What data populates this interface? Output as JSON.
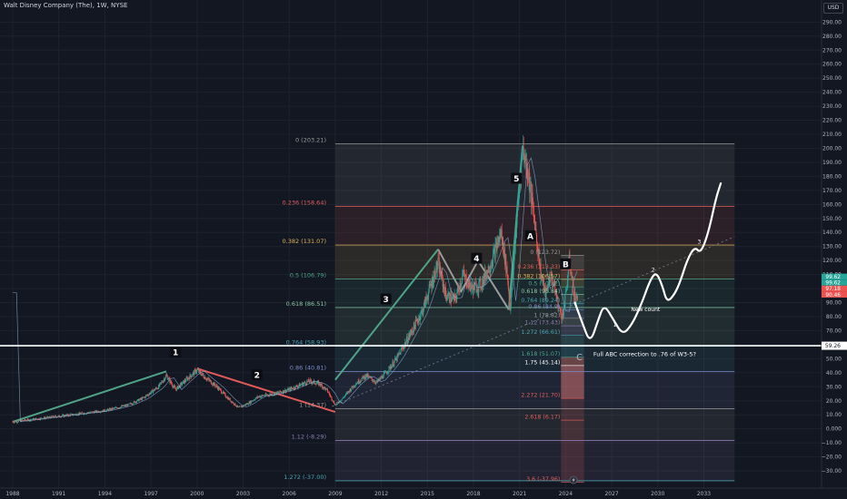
{
  "header": {
    "title": "Walt Disney Company (The), 1W, NYSE",
    "currency": "USD"
  },
  "colors": {
    "background": "#131722",
    "grid": "#1e222d",
    "candle_up": "#26a69a",
    "candle_down": "#ef5350",
    "fib_up_line": "#4fa387",
    "fib_down_line": "#d84f4f",
    "projection": "#ffffff"
  },
  "icons": [
    "lightning-icon"
  ],
  "chart_data": {
    "type": "candlestick",
    "title": "Walt Disney Company (The), 1W, NYSE",
    "x_axis": {
      "range": [
        1988,
        2035
      ],
      "ticks": [
        1988,
        1991,
        1994,
        1997,
        2000,
        2003,
        2006,
        2009,
        2012,
        2015,
        2018,
        2021,
        2024,
        2027,
        2030,
        2033
      ]
    },
    "y_axis": {
      "unit": "USD",
      "range": [
        -33,
        295
      ],
      "ticks": [
        -30,
        -20,
        -10,
        0,
        10,
        20,
        30,
        40,
        50,
        60,
        70,
        80,
        90,
        100,
        110,
        120,
        130,
        140,
        150,
        160,
        170,
        180,
        190,
        200,
        210,
        220,
        230,
        240,
        250,
        260,
        270,
        280,
        290
      ],
      "tick_labels": [
        "−30.00",
        "−20.00",
        "−10.00",
        "0.000",
        "10.00",
        "20.00",
        "30.00",
        "40.00",
        "50.00",
        "60.00",
        "70.00",
        "80.00",
        "90.00",
        "100.00",
        "110.00",
        "120.00",
        "130.00",
        "140.00",
        "150.00",
        "160.00",
        "170.00",
        "180.00",
        "190.00",
        "200.00",
        "210.00",
        "220.00",
        "230.00",
        "240.00",
        "250.00",
        "260.00",
        "270.00",
        "280.00",
        "290.00"
      ]
    },
    "price_path": [
      [
        1988.0,
        5
      ],
      [
        1989.5,
        7
      ],
      [
        1991.0,
        9
      ],
      [
        1992.5,
        11
      ],
      [
        1994.0,
        13
      ],
      [
        1995.5,
        17
      ],
      [
        1996.5,
        22
      ],
      [
        1997.5,
        30
      ],
      [
        1998.0,
        38
      ],
      [
        1998.6,
        28
      ],
      [
        1999.3,
        35
      ],
      [
        2000.0,
        42
      ],
      [
        2000.5,
        37
      ],
      [
        2001.3,
        30
      ],
      [
        2002.0,
        22
      ],
      [
        2002.7,
        15
      ],
      [
        2003.3,
        18
      ],
      [
        2004.0,
        23
      ],
      [
        2005.0,
        25
      ],
      [
        2006.0,
        28
      ],
      [
        2007.3,
        34
      ],
      [
        2008.0,
        32
      ],
      [
        2008.5,
        27
      ],
      [
        2009.0,
        17
      ],
      [
        2009.5,
        22
      ],
      [
        2010.3,
        32
      ],
      [
        2011.0,
        38
      ],
      [
        2011.7,
        33
      ],
      [
        2012.3,
        40
      ],
      [
        2013.0,
        50
      ],
      [
        2014.0,
        70
      ],
      [
        2014.7,
        85
      ],
      [
        2015.3,
        105
      ],
      [
        2015.7,
        118
      ],
      [
        2016.2,
        95
      ],
      [
        2016.8,
        92
      ],
      [
        2017.3,
        110
      ],
      [
        2017.9,
        100
      ],
      [
        2018.5,
        103
      ],
      [
        2019.2,
        120
      ],
      [
        2019.8,
        140
      ],
      [
        2020.2,
        110
      ],
      [
        2020.4,
        85
      ],
      [
        2020.7,
        130
      ],
      [
        2021.0,
        175
      ],
      [
        2021.2,
        201
      ],
      [
        2021.6,
        180
      ],
      [
        2022.0,
        145
      ],
      [
        2022.4,
        110
      ],
      [
        2022.7,
        95
      ],
      [
        2023.0,
        110
      ],
      [
        2023.3,
        100
      ],
      [
        2023.6,
        84
      ],
      [
        2023.8,
        80
      ],
      [
        2024.0,
        95
      ],
      [
        2024.25,
        121
      ],
      [
        2024.5,
        100
      ],
      [
        2024.65,
        90
      ],
      [
        2024.8,
        97
      ]
    ],
    "last_price": {
      "values": [
        99.62,
        99.62,
        97.18,
        90.46
      ],
      "colors": [
        "#26a69a",
        "#26a69a",
        "#ef5350",
        "#ef5350"
      ]
    },
    "fib_retracement_major": {
      "levels": [
        {
          "label": "0 (203.21)",
          "value": 203.21,
          "color": "#9b9b9b"
        },
        {
          "label": "0.236 (158.64)",
          "value": 158.64,
          "color": "#e0605a"
        },
        {
          "label": "0.382 (131.07)",
          "value": 131.07,
          "color": "#e0b25a"
        },
        {
          "label": "0.5 (106.79)",
          "value": 106.79,
          "color": "#4fa387"
        },
        {
          "label": "0.618 (86.51)",
          "value": 86.51,
          "color": "#8ac6a4"
        },
        {
          "label": "0.764 (58.93)",
          "value": 58.93,
          "color": "#4aa3b3"
        },
        {
          "label": "0.86 (40.81)",
          "value": 40.81,
          "color": "#7b8cc9"
        },
        {
          "label": "1 (14.37)",
          "value": 14.37,
          "color": "#9b9b9b"
        },
        {
          "label": "1.12 (-8.29)",
          "value": -8.29,
          "color": "#8c7bb5"
        },
        {
          "label": "1.272 (-37.00)",
          "value": -37.0,
          "color": "#4aa3b3"
        }
      ]
    },
    "fib_retracement_minor": {
      "levels": [
        {
          "label": "0 (123.72)",
          "value": 123.72,
          "color": "#9b9b9b"
        },
        {
          "label": "0.236 (113.33)",
          "value": 113.33,
          "color": "#e0605a"
        },
        {
          "label": "0.382 (106.57)",
          "value": 106.57,
          "color": "#e0b25a"
        },
        {
          "label": "0.5 (101.2)",
          "value": 101.2,
          "color": "#4fa387"
        },
        {
          "label": "0.618 (95.84)",
          "value": 95.84,
          "color": "#8ac6a4"
        },
        {
          "label": "0.764 (89.24)",
          "value": 89.24,
          "color": "#4aa3b3"
        },
        {
          "label": "0.86 (84.9)",
          "value": 84.9,
          "color": "#7b8cc9"
        },
        {
          "label": "1 (78.82)",
          "value": 78.82,
          "color": "#9b9b9b"
        },
        {
          "label": "1.12 (73.43)",
          "value": 73.43,
          "color": "#8c7bb5"
        },
        {
          "label": "1.272 (66.61)",
          "value": 66.61,
          "color": "#4aa3b3"
        },
        {
          "label": "1.618 (51.07)",
          "value": 51.07,
          "color": "#4fa387"
        },
        {
          "label": "1.75 (45.14)",
          "value": 45.14,
          "color": "#ffffff"
        },
        {
          "label": "2.272 (21.70)",
          "value": 21.7,
          "color": "#e0605a"
        },
        {
          "label": "2.618 (6.17)",
          "value": 6.17,
          "color": "#e0605a"
        },
        {
          "label": "3.6 (-37.96)",
          "value": -37.96,
          "color": "#e0605a"
        }
      ]
    },
    "trendlines": [
      {
        "name": "wave-1-line",
        "color": "#4fa387",
        "points": [
          [
            1988.0,
            5
          ],
          [
            1998.0,
            41
          ]
        ]
      },
      {
        "name": "wave-2-line",
        "color": "#e05a5a",
        "points": [
          [
            2000.0,
            43
          ],
          [
            2009.0,
            12
          ]
        ]
      },
      {
        "name": "wave-3-line",
        "color": "#4fa387",
        "points": [
          [
            2009.0,
            35
          ],
          [
            2015.7,
            128
          ]
        ]
      },
      {
        "name": "wave-4-line",
        "color": "#9b9b9b",
        "points": [
          [
            2015.7,
            128
          ],
          [
            2017.2,
            98
          ],
          [
            2018.3,
            120
          ],
          [
            2020.3,
            85
          ]
        ]
      },
      {
        "name": "wave-5-line",
        "color": "#4fa387",
        "points": [
          [
            2020.3,
            85
          ],
          [
            2021.2,
            202
          ]
        ]
      }
    ],
    "channel_line": {
      "color": "#6b7a8c",
      "points": [
        [
          2008.8,
          16
        ],
        [
          2035.0,
          137
        ]
      ]
    },
    "horizontal_line": {
      "value": 59.26,
      "label": "59.26"
    },
    "projection_path": [
      [
        2024.6,
        90
      ],
      [
        2025.1,
        75
      ],
      [
        2025.6,
        61
      ],
      [
        2026.1,
        77
      ],
      [
        2026.5,
        89
      ],
      [
        2027.1,
        78
      ],
      [
        2027.7,
        67
      ],
      [
        2028.3,
        74
      ],
      [
        2028.9,
        88
      ],
      [
        2029.5,
        106
      ],
      [
        2029.9,
        112
      ],
      [
        2030.3,
        102
      ],
      [
        2030.6,
        90
      ],
      [
        2031.1,
        96
      ],
      [
        2031.5,
        106
      ],
      [
        2031.9,
        120
      ],
      [
        2032.4,
        130
      ],
      [
        2032.8,
        125
      ],
      [
        2033.3,
        140
      ],
      [
        2033.8,
        165
      ],
      [
        2034.1,
        175
      ]
    ],
    "annotations": [
      {
        "text": "1",
        "x": 1998.6,
        "y": 54,
        "boxed": true
      },
      {
        "text": "2",
        "x": 2003.9,
        "y": 38,
        "boxed": true
      },
      {
        "text": "3",
        "x": 2012.3,
        "y": 92,
        "boxed": true
      },
      {
        "text": "4",
        "x": 2018.2,
        "y": 121,
        "boxed": true
      },
      {
        "text": "5",
        "x": 2020.8,
        "y": 178,
        "boxed": true
      },
      {
        "text": "A",
        "x": 2021.7,
        "y": 137,
        "boxed": true
      },
      {
        "text": "B",
        "x": 2024.0,
        "y": 117,
        "boxed": true
      },
      {
        "text": "C",
        "x": 2024.9,
        "y": 49,
        "boxed": false
      },
      {
        "text": "1",
        "x": 2027.2,
        "y": 73,
        "boxed": false,
        "small": true
      },
      {
        "text": "2",
        "x": 2029.7,
        "y": 112,
        "boxed": false,
        "small": true
      },
      {
        "text": "3",
        "x": 2032.7,
        "y": 132,
        "boxed": false,
        "small": true
      },
      {
        "text": "New count",
        "x": 2029.2,
        "y": 84,
        "boxed": false,
        "small": true
      },
      {
        "text": "Full ABC correction to .76 of W3-5?",
        "x": 2025.8,
        "y": 52,
        "boxed": false
      }
    ]
  }
}
